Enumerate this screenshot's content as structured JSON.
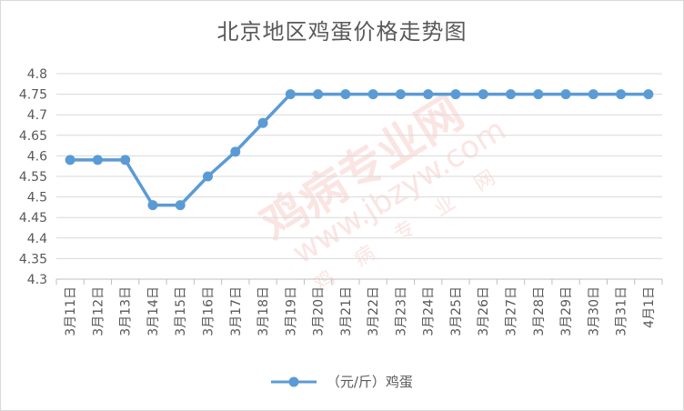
{
  "chart_data": {
    "type": "line",
    "title": "北京地区鸡蛋价格走势图",
    "categories": [
      "3月11日",
      "3月12日",
      "3月13日",
      "3月14日",
      "3月15日",
      "3月16日",
      "3月17日",
      "3月18日",
      "3月19日",
      "3月20日",
      "3月21日",
      "3月22日",
      "3月23日",
      "3月24日",
      "3月25日",
      "3月26日",
      "3月27日",
      "3月28日",
      "3月29日",
      "3月30日",
      "3月31日",
      "4月1日"
    ],
    "series": [
      {
        "name": "（元/斤）鸡蛋",
        "values": [
          4.59,
          4.59,
          4.59,
          4.48,
          4.48,
          4.55,
          4.61,
          4.68,
          4.75,
          4.75,
          4.75,
          4.75,
          4.75,
          4.75,
          4.75,
          4.75,
          4.75,
          4.75,
          4.75,
          4.75,
          4.75,
          4.75
        ]
      }
    ],
    "ylim": [
      4.3,
      4.8
    ],
    "yticks": [
      "4.8",
      "4.75",
      "4.7",
      "4.65",
      "4.6",
      "4.55",
      "4.5",
      "4.45",
      "4.4",
      "4.35",
      "4.3"
    ],
    "grid": true,
    "legend_position": "bottom",
    "line_color": "#5b9bd5"
  },
  "watermark": {
    "main": "鸡病专业网",
    "url": "www.jbzyw.com",
    "sub": "鸡病专业网"
  }
}
